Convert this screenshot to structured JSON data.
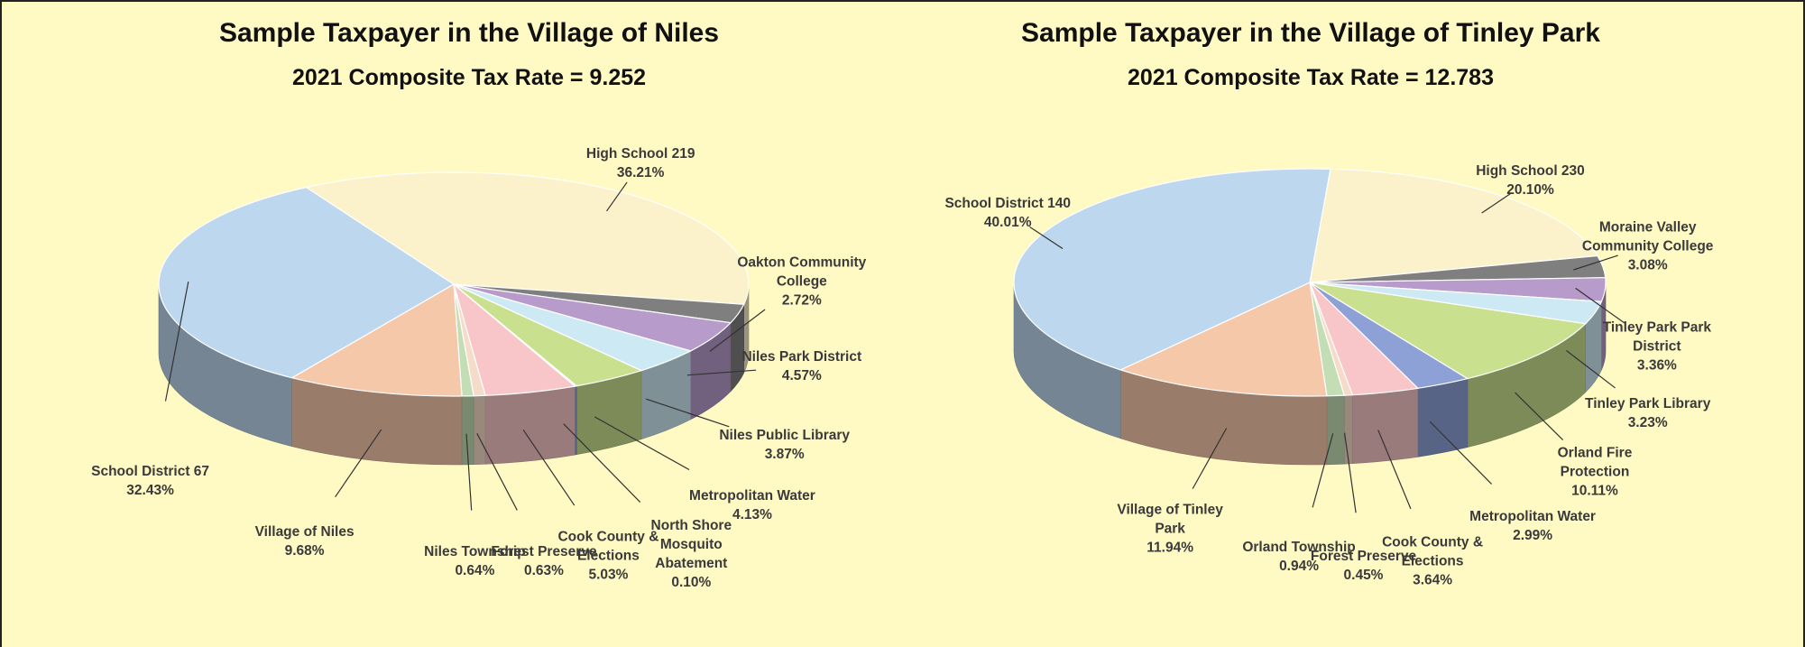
{
  "chart_data": [
    {
      "type": "pie",
      "title": "Sample Taxpayer in the Village of Niles",
      "subtitle": "2021 Composite Tax Rate = 9.252",
      "categories": [
        "High School 219",
        "Oakton Community College",
        "Niles Park District",
        "Niles Public Library",
        "Metropolitan Water",
        "North Shore Mosquito Abatement",
        "Cook County & Elections",
        "Forest Preserve",
        "Niles Township",
        "Village of Niles",
        "School District 67"
      ],
      "values": [
        36.21,
        2.72,
        4.57,
        3.87,
        4.13,
        0.1,
        5.03,
        0.63,
        0.64,
        9.68,
        32.43
      ],
      "value_labels": [
        "36.21%",
        "2.72%",
        "4.57%",
        "3.87%",
        "4.13%",
        "0.10%",
        "5.03%",
        "0.63%",
        "0.64%",
        "9.68%",
        "32.43%"
      ],
      "colors": [
        "#FBF1CB",
        "#7F7F7F",
        "#B79BCB",
        "#CDEAF4",
        "#C9E08F",
        "#8EA1D6",
        "#F8C6C8",
        "#F6DCC8",
        "#C3DEB5",
        "#F6C8AA",
        "#BDD7EE"
      ]
    },
    {
      "type": "pie",
      "title": "Sample Taxpayer in the Village of Tinley Park",
      "subtitle": "2021 Composite Tax Rate = 12.783",
      "categories": [
        "High School 230",
        "Moraine Valley Community College",
        "Tinley Park Park District",
        "Tinley Park Library",
        "Orland Fire Protection",
        "Metropolitan Water",
        "Cook County & Elections",
        "Forest Preserve",
        "Orland Township",
        "Village of Tinley Park",
        "School District 140"
      ],
      "values": [
        20.1,
        3.08,
        3.36,
        3.23,
        10.11,
        2.99,
        3.64,
        0.45,
        0.94,
        11.94,
        40.01
      ],
      "value_labels": [
        "20.10%",
        "3.08%",
        "3.36%",
        "3.23%",
        "10.11%",
        "2.99%",
        "3.64%",
        "0.45%",
        "0.94%",
        "11.94%",
        "40.01%"
      ],
      "colors": [
        "#FBF1CB",
        "#7F7F7F",
        "#B79BCB",
        "#CDEAF4",
        "#C9E08F",
        "#8EA1D6",
        "#F8C6C8",
        "#F6DCC8",
        "#C3DEB5",
        "#F6C8AA",
        "#BDD7EE"
      ]
    }
  ]
}
